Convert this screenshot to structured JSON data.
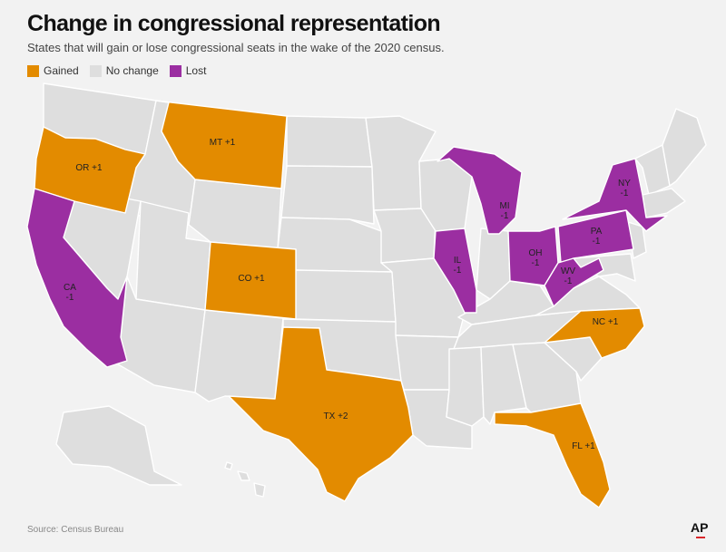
{
  "title": "Change in congressional representation",
  "subtitle": "States that will gain or lose congressional seats in the wake of the 2020 census.",
  "legend": [
    {
      "label": "Gained",
      "color": "#e38b00"
    },
    {
      "label": "No change",
      "color": "#dedede"
    },
    {
      "label": "Lost",
      "color": "#9b2ea1"
    }
  ],
  "colors": {
    "gained": "#e38b00",
    "nochange": "#dedede",
    "lost": "#9b2ea1"
  },
  "states": [
    {
      "id": "OR",
      "status": "gained",
      "label": "OR +1"
    },
    {
      "id": "MT",
      "status": "gained",
      "label": "MT +1"
    },
    {
      "id": "CO",
      "status": "gained",
      "label": "CO +1"
    },
    {
      "id": "TX",
      "status": "gained",
      "label": "TX +2"
    },
    {
      "id": "FL",
      "status": "gained",
      "label": "FL +1"
    },
    {
      "id": "NC",
      "status": "gained",
      "label": "NC +1"
    },
    {
      "id": "CA",
      "status": "lost",
      "label": "CA -1"
    },
    {
      "id": "IL",
      "status": "lost",
      "label": "IL -1"
    },
    {
      "id": "MI",
      "status": "lost",
      "label": "MI -1"
    },
    {
      "id": "OH",
      "status": "lost",
      "label": "OH -1"
    },
    {
      "id": "PA",
      "status": "lost",
      "label": "PA -1"
    },
    {
      "id": "WV",
      "status": "lost",
      "label": "WV -1"
    },
    {
      "id": "NY",
      "status": "lost",
      "label": "NY -1"
    }
  ],
  "source": "Source: Census Bureau",
  "logo": "AP"
}
